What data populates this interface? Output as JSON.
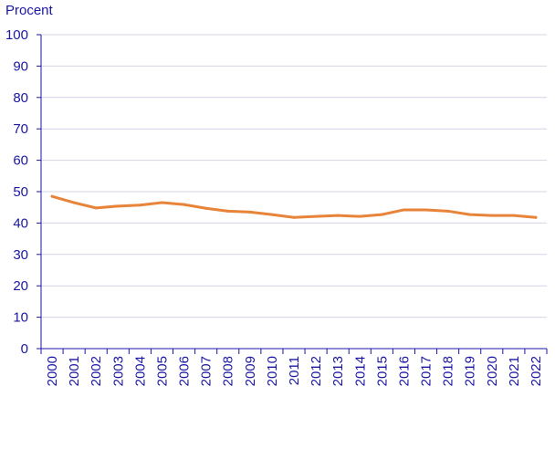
{
  "chart_data": {
    "type": "line",
    "title": "",
    "xlabel": "",
    "ylabel": "Procent",
    "ylim": [
      0,
      100
    ],
    "yticks": [
      0,
      10,
      20,
      30,
      40,
      50,
      60,
      70,
      80,
      90,
      100
    ],
    "grid": true,
    "legend": "none",
    "categories": [
      "2000",
      "2001",
      "2002",
      "2003",
      "2004",
      "2005",
      "2006",
      "2007",
      "2008",
      "2009",
      "2010",
      "2011",
      "2012",
      "2013",
      "2014",
      "2015",
      "2016",
      "2017",
      "2018",
      "2019",
      "2020",
      "2021",
      "2022"
    ],
    "series": [
      {
        "color": "#e8833a",
        "values": [
          48.5,
          46.5,
          44.8,
          45.4,
          45.7,
          46.5,
          45.9,
          44.7,
          43.8,
          43.5,
          42.7,
          41.8,
          42.1,
          42.4,
          42.1,
          42.7,
          44.2,
          44.2,
          43.8,
          42.7,
          42.4,
          42.4,
          41.8
        ]
      }
    ],
    "colors": {
      "axis": "#1a17a3",
      "grid": "#d4d4e6",
      "text": "#1a17a3"
    }
  }
}
